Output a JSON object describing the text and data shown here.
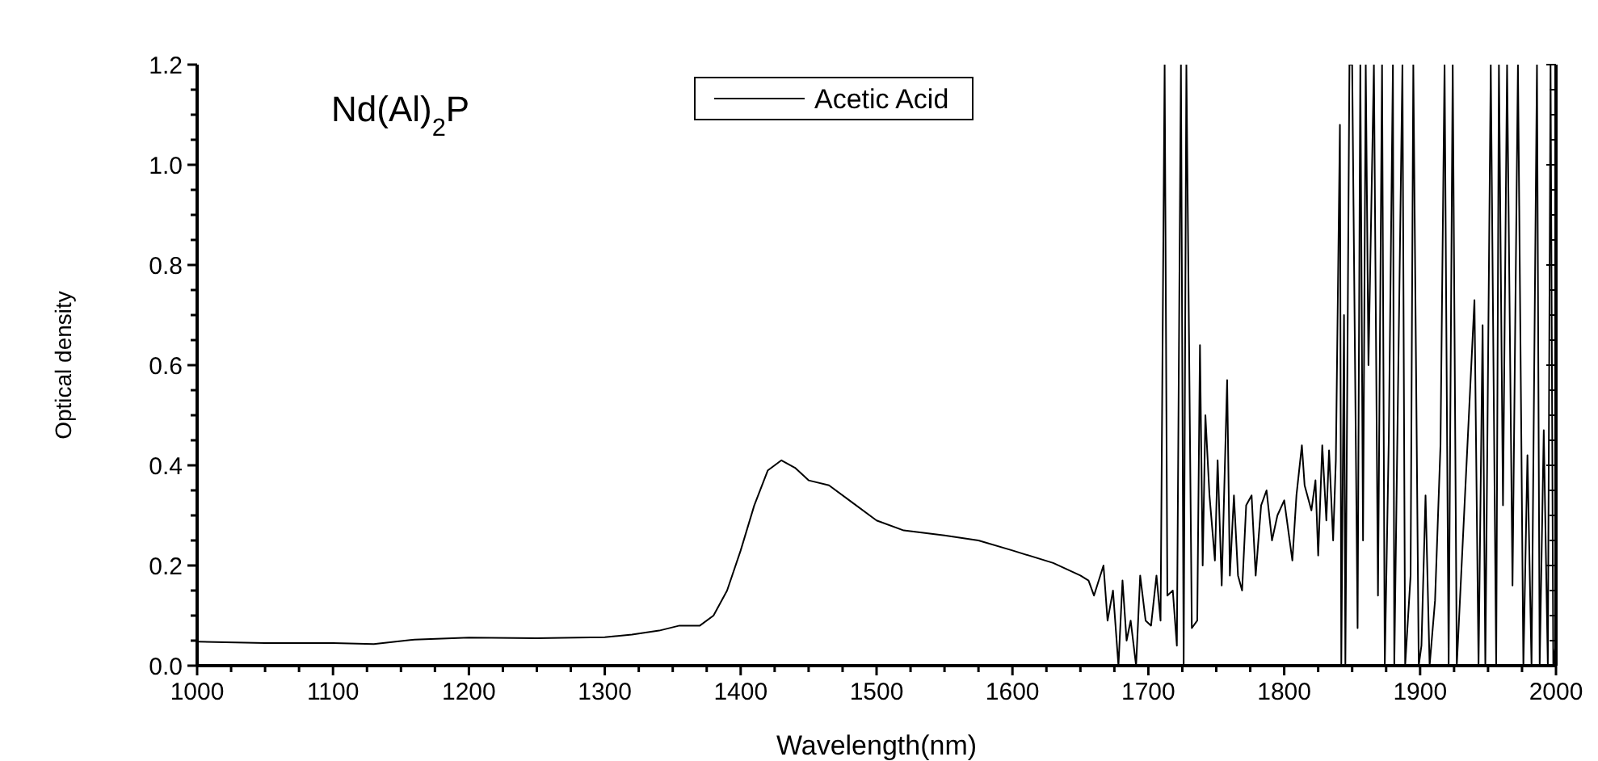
{
  "chart_data": {
    "type": "line",
    "title": "Nd(Al)$_{2}$P",
    "xlabel": "Wavelength(nm)",
    "ylabel": "Optical density",
    "legend": "top",
    "grid": false,
    "marker": "none",
    "line_style": "solid",
    "xlim": [
      1000,
      2000
    ],
    "xticks": [
      1000,
      {
        "value": 1025,
        "label": null
      },
      {
        "value": 1050,
        "label": null
      },
      {
        "value": 1075,
        "label": null
      },
      1100,
      {
        "value": 1125,
        "label": null
      },
      {
        "value": 1150,
        "label": null
      },
      {
        "value": 1175,
        "label": null
      },
      1200,
      {
        "value": 1225,
        "label": null
      },
      {
        "value": 1250,
        "label": null
      },
      {
        "value": 1275,
        "label": null
      },
      1300,
      {
        "value": 1325,
        "label": null
      },
      {
        "value": 1350,
        "label": null
      },
      {
        "value": 1375,
        "label": null
      },
      1400,
      {
        "value": 1425,
        "label": null
      },
      {
        "value": 1450,
        "label": null
      },
      {
        "value": 1475,
        "label": null
      },
      1500,
      {
        "value": 1525,
        "label": null
      },
      {
        "value": 1550,
        "label": null
      },
      {
        "value": 1575,
        "label": null
      },
      1600,
      {
        "value": 1625,
        "label": null
      },
      {
        "value": 1650,
        "label": null
      },
      {
        "value": 1675,
        "label": null
      },
      1700,
      {
        "value": 1725,
        "label": null
      },
      {
        "value": 1750,
        "label": null
      },
      {
        "value": 1775,
        "label": null
      },
      1800,
      {
        "value": 1825,
        "label": null
      },
      {
        "value": 1850,
        "label": null
      },
      {
        "value": 1875,
        "label": null
      },
      1900,
      {
        "value": 1925,
        "label": null
      },
      {
        "value": 1950,
        "label": null
      },
      {
        "value": 1975,
        "label": null
      },
      2000
    ],
    "ylim": [
      0,
      1.2
    ],
    "yticks": [
      {
        "value": 0,
        "label": "0.0"
      },
      {
        "value": 0.05,
        "label": null
      },
      {
        "value": 0.1,
        "label": null
      },
      {
        "value": 0.15,
        "label": null
      },
      {
        "value": 0.2,
        "label": "0.2"
      },
      {
        "value": 0.25,
        "label": null
      },
      {
        "value": 0.3,
        "label": null
      },
      {
        "value": 0.35,
        "label": null
      },
      {
        "value": 0.4,
        "label": "0.4"
      },
      {
        "value": 0.45,
        "label": null
      },
      {
        "value": 0.5,
        "label": null
      },
      {
        "value": 0.55,
        "label": null
      },
      {
        "value": 0.6,
        "label": "0.6"
      },
      {
        "value": 0.65,
        "label": null
      },
      {
        "value": 0.7,
        "label": null
      },
      {
        "value": 0.75,
        "label": null
      },
      {
        "value": 0.8,
        "label": "0.8"
      },
      {
        "value": 0.85,
        "label": null
      },
      {
        "value": 0.9,
        "label": null
      },
      {
        "value": 0.95,
        "label": null
      },
      {
        "value": 1.0,
        "label": "1.0"
      },
      {
        "value": 1.05,
        "label": null
      },
      {
        "value": 1.1,
        "label": null
      },
      {
        "value": 1.15,
        "label": null
      },
      {
        "value": 1.2,
        "label": "1.2"
      }
    ],
    "series": [
      {
        "name": "Acetic Acid",
        "color": "#000000",
        "x": [
          1000,
          1050,
          1100,
          1130,
          1160,
          1200,
          1250,
          1300,
          1320,
          1340,
          1355,
          1370,
          1380,
          1390,
          1400,
          1410,
          1420,
          1430,
          1440,
          1450,
          1465,
          1480,
          1500,
          1520,
          1550,
          1575,
          1600,
          1630,
          1650,
          1656,
          1660,
          1667,
          1670,
          1674,
          1678,
          1681,
          1684,
          1687,
          1691,
          1694,
          1698,
          1702,
          1706,
          1709,
          1712,
          1714,
          1718,
          1721,
          1724,
          1726,
          1728,
          1732,
          1736,
          1738,
          1740,
          1742,
          1745,
          1749,
          1751,
          1754,
          1758,
          1760,
          1763,
          1766,
          1769,
          1772,
          1776,
          1779,
          1783,
          1787,
          1791,
          1795,
          1800,
          1803,
          1806,
          1809,
          1813,
          1815,
          1820,
          1823,
          1825,
          1828,
          1831,
          1833,
          1836,
          1838,
          1841,
          1842,
          1844,
          1845,
          1848,
          1850,
          1854,
          1856,
          1858,
          1860,
          1862,
          1866,
          1869,
          1872,
          1874,
          1877,
          1880,
          1881,
          1887,
          1889,
          1893,
          1895,
          1899,
          1901,
          1904,
          1907,
          1911,
          1915,
          1918,
          1921,
          1924,
          1927,
          1940,
          1943,
          1946,
          1948,
          1952,
          1956,
          1958,
          1961,
          1964,
          1968,
          1972,
          1976,
          1979,
          1982,
          1986,
          1988,
          1991,
          1994,
          1996,
          1998,
          2000
        ],
        "values": [
          0.048,
          0.045,
          0.045,
          0.043,
          0.052,
          0.056,
          0.055,
          0.057,
          0.062,
          0.07,
          0.08,
          0.08,
          0.1,
          0.15,
          0.23,
          0.32,
          0.39,
          0.41,
          0.395,
          0.37,
          0.36,
          0.33,
          0.29,
          0.27,
          0.26,
          0.25,
          0.23,
          0.205,
          0.18,
          0.17,
          0.14,
          0.2,
          0.09,
          0.15,
          0,
          0.17,
          0.05,
          0.09,
          0,
          0.18,
          0.09,
          0.08,
          0.18,
          0.09,
          1.2,
          0.14,
          0.15,
          0.04,
          1.2,
          0,
          1.2,
          0.075,
          0.09,
          0.64,
          0.2,
          0.5,
          0.34,
          0.21,
          0.41,
          0.16,
          0.57,
          0.18,
          0.34,
          0.18,
          0.15,
          0.32,
          0.34,
          0.18,
          0.32,
          0.35,
          0.25,
          0.3,
          0.33,
          0.27,
          0.21,
          0.34,
          0.44,
          0.36,
          0.31,
          0.37,
          0.22,
          0.44,
          0.29,
          0.43,
          0.25,
          0.41,
          1.08,
          0,
          0.7,
          0,
          1.2,
          1.2,
          0.075,
          1.2,
          0.25,
          1.2,
          0.6,
          1.2,
          0.14,
          1.2,
          0,
          0.46,
          1.2,
          0,
          1.2,
          0,
          0.18,
          1.2,
          0,
          0.04,
          0.34,
          0,
          0.13,
          0.44,
          1.2,
          0,
          1.2,
          0,
          0.73,
          0,
          0.68,
          0,
          1.2,
          0,
          1.2,
          0.32,
          1.2,
          0.16,
          1.2,
          0,
          0.42,
          0,
          1.2,
          0,
          0.47,
          0,
          1.2,
          0,
          0.05
        ]
      }
    ]
  }
}
